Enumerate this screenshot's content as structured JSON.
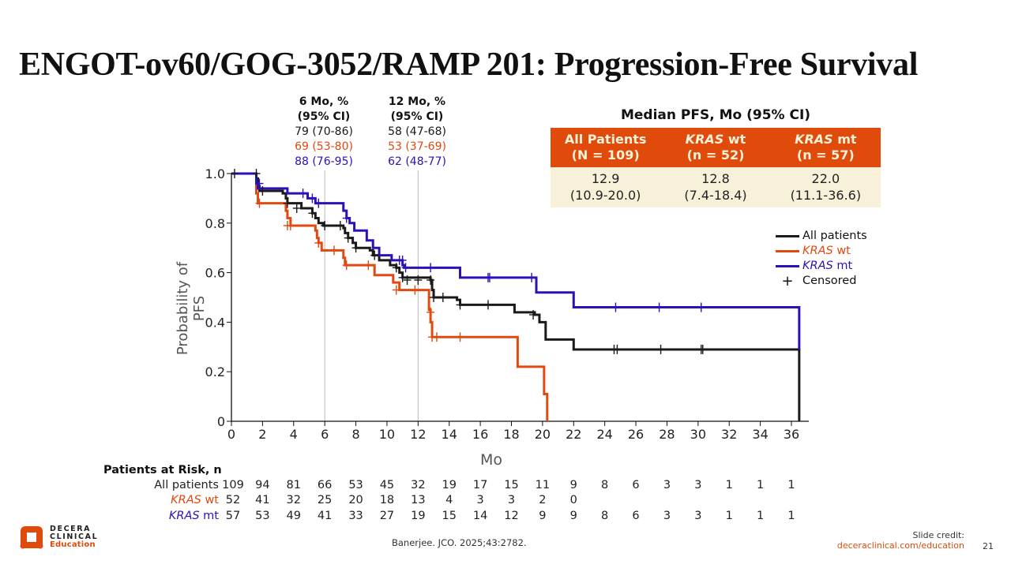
{
  "slide": {
    "title": "ENGOT-ov60/GOG-3052/RAMP 201: Progression-Free Survival",
    "citation": "Banerjee. JCO. 2025;43:2782.",
    "credit_label": "Slide credit:",
    "credit_url": "deceraclinical.com/education",
    "slide_number": "21",
    "logo": {
      "line1": "DECERA",
      "line2": "CLINICAL",
      "line3": "Education"
    }
  },
  "colors": {
    "all": "#1a1a1a",
    "wt": "#e04a10",
    "mt": "#2a12b8",
    "accent": "#e04a0a",
    "table_bg": "#f8f1d9"
  },
  "landmarks": [
    {
      "header1": "6 Mo, %",
      "header2": "(95% CI)",
      "all": "79 (70-86)",
      "wt": "69 (53-80)",
      "mt": "88 (76-95)"
    },
    {
      "header1": "12 Mo, %",
      "header2": "(95% CI)",
      "all": "58 (47-68)",
      "wt": "53 (37-69)",
      "mt": "62 (48-77)"
    }
  ],
  "median_table": {
    "title": "Median PFS, Mo (95% CI)",
    "columns": [
      {
        "label_a": "",
        "label_b": "All Patients",
        "n": "(N = 109)",
        "median": "12.9",
        "ci": "(10.9-20.0)"
      },
      {
        "label_a": "KRAS",
        "label_b": " wt",
        "n": "(n = 52)",
        "median": "12.8",
        "ci": "(7.4-18.4)"
      },
      {
        "label_a": "KRAS",
        "label_b": " mt",
        "n": "(n = 57)",
        "median": "22.0",
        "ci": "(11.1-36.6)"
      }
    ]
  },
  "legend": [
    {
      "gene": "",
      "label": "All patients",
      "key": "all"
    },
    {
      "gene": "KRAS",
      "label": " wt",
      "key": "wt"
    },
    {
      "gene": "KRAS",
      "label": " mt",
      "key": "mt"
    },
    {
      "gene": "",
      "label": "Censored",
      "key": "censor"
    }
  ],
  "risk_table": {
    "title": "Patients at Risk, n",
    "times": [
      0,
      2,
      4,
      6,
      8,
      10,
      12,
      14,
      16,
      18,
      20,
      22,
      24,
      26,
      28,
      30,
      32,
      34,
      36
    ],
    "rows": [
      {
        "gene": "",
        "label": "All patients",
        "key": "all",
        "values": [
          "109",
          "94",
          "81",
          "66",
          "53",
          "45",
          "32",
          "19",
          "17",
          "15",
          "11",
          "9",
          "8",
          "6",
          "3",
          "3",
          "1",
          "1",
          "1"
        ]
      },
      {
        "gene": "KRAS",
        "label": " wt",
        "key": "wt",
        "values": [
          "52",
          "41",
          "32",
          "25",
          "20",
          "18",
          "13",
          "4",
          "3",
          "3",
          "2",
          "0"
        ]
      },
      {
        "gene": "KRAS",
        "label": " mt",
        "key": "mt",
        "values": [
          "57",
          "53",
          "49",
          "41",
          "33",
          "27",
          "19",
          "15",
          "14",
          "12",
          "9",
          "9",
          "8",
          "6",
          "3",
          "3",
          "1",
          "1",
          "1"
        ]
      }
    ]
  },
  "chart_data": {
    "type": "line",
    "subtype": "kaplan-meier step",
    "title": "",
    "xlabel": "Mo",
    "ylabel": "Probability of PFS",
    "xlim": [
      0,
      37
    ],
    "ylim": [
      0,
      1.0
    ],
    "xticks": [
      0,
      2,
      4,
      6,
      8,
      10,
      12,
      14,
      16,
      18,
      20,
      22,
      24,
      26,
      28,
      30,
      32,
      34,
      36
    ],
    "yticks": [
      0,
      0.2,
      0.4,
      0.6,
      0.8,
      1.0
    ],
    "ytick_labels": [
      "0",
      "0.2",
      "0.4",
      "0.6",
      "0.8",
      "1.0"
    ],
    "reference_lines_x": [
      6,
      12
    ],
    "legend_position": "right",
    "series": [
      {
        "name": "All patients",
        "key": "all",
        "steps": [
          [
            0,
            1.0
          ],
          [
            1.6,
            0.98
          ],
          [
            1.7,
            0.95
          ],
          [
            1.8,
            0.93
          ],
          [
            3.3,
            0.92
          ],
          [
            3.5,
            0.9
          ],
          [
            3.6,
            0.88
          ],
          [
            4.5,
            0.86
          ],
          [
            5.2,
            0.84
          ],
          [
            5.4,
            0.82
          ],
          [
            5.6,
            0.8
          ],
          [
            5.9,
            0.79
          ],
          [
            7.2,
            0.78
          ],
          [
            7.3,
            0.76
          ],
          [
            7.5,
            0.74
          ],
          [
            7.8,
            0.72
          ],
          [
            8.0,
            0.7
          ],
          [
            8.9,
            0.69
          ],
          [
            9.1,
            0.67
          ],
          [
            9.5,
            0.65
          ],
          [
            10.2,
            0.63
          ],
          [
            10.6,
            0.62
          ],
          [
            10.8,
            0.6
          ],
          [
            11.0,
            0.58
          ],
          [
            12.8,
            0.57
          ],
          [
            12.9,
            0.53
          ],
          [
            13.0,
            0.5
          ],
          [
            14.5,
            0.49
          ],
          [
            14.7,
            0.47
          ],
          [
            18.2,
            0.44
          ],
          [
            19.5,
            0.43
          ],
          [
            19.8,
            0.4
          ],
          [
            20.2,
            0.33
          ],
          [
            22.0,
            0.29
          ],
          [
            36.5,
            0.0
          ]
        ],
        "censored": [
          [
            0.2,
            1.0
          ],
          [
            1.6,
            1.0
          ],
          [
            2.0,
            0.93
          ],
          [
            3.6,
            0.88
          ],
          [
            4.2,
            0.86
          ],
          [
            5.2,
            0.84
          ],
          [
            6.0,
            0.79
          ],
          [
            7.0,
            0.79
          ],
          [
            7.5,
            0.74
          ],
          [
            8.0,
            0.7
          ],
          [
            9.2,
            0.67
          ],
          [
            10.6,
            0.62
          ],
          [
            11.0,
            0.58
          ],
          [
            11.3,
            0.57
          ],
          [
            12.0,
            0.57
          ],
          [
            12.8,
            0.57
          ],
          [
            13.0,
            0.5
          ],
          [
            13.6,
            0.5
          ],
          [
            14.7,
            0.47
          ],
          [
            16.5,
            0.47
          ],
          [
            19.4,
            0.43
          ],
          [
            24.6,
            0.29
          ],
          [
            24.8,
            0.29
          ],
          [
            27.6,
            0.29
          ],
          [
            30.2,
            0.29
          ],
          [
            30.3,
            0.29
          ]
        ]
      },
      {
        "name": "KRAS wt",
        "key": "wt",
        "steps": [
          [
            0,
            1.0
          ],
          [
            1.6,
            0.92
          ],
          [
            1.7,
            0.88
          ],
          [
            3.5,
            0.85
          ],
          [
            3.6,
            0.82
          ],
          [
            3.8,
            0.79
          ],
          [
            5.4,
            0.77
          ],
          [
            5.5,
            0.74
          ],
          [
            5.6,
            0.72
          ],
          [
            5.8,
            0.69
          ],
          [
            7.2,
            0.66
          ],
          [
            7.3,
            0.63
          ],
          [
            9.2,
            0.59
          ],
          [
            10.4,
            0.56
          ],
          [
            10.8,
            0.53
          ],
          [
            12.7,
            0.45
          ],
          [
            12.8,
            0.4
          ],
          [
            12.9,
            0.34
          ],
          [
            18.4,
            0.22
          ],
          [
            20.1,
            0.11
          ],
          [
            20.3,
            0.0
          ]
        ],
        "censored": [
          [
            1.8,
            0.88
          ],
          [
            3.6,
            0.79
          ],
          [
            3.8,
            0.79
          ],
          [
            5.6,
            0.72
          ],
          [
            6.6,
            0.69
          ],
          [
            7.4,
            0.63
          ],
          [
            8.8,
            0.63
          ],
          [
            10.6,
            0.53
          ],
          [
            11.8,
            0.53
          ],
          [
            12.8,
            0.44
          ],
          [
            12.9,
            0.34
          ],
          [
            13.2,
            0.34
          ],
          [
            14.7,
            0.34
          ]
        ]
      },
      {
        "name": "KRAS mt",
        "key": "mt",
        "steps": [
          [
            0,
            1.0
          ],
          [
            1.6,
            0.96
          ],
          [
            1.7,
            0.94
          ],
          [
            3.6,
            0.92
          ],
          [
            4.9,
            0.9
          ],
          [
            5.4,
            0.88
          ],
          [
            7.2,
            0.85
          ],
          [
            7.4,
            0.82
          ],
          [
            7.6,
            0.8
          ],
          [
            7.9,
            0.77
          ],
          [
            8.7,
            0.73
          ],
          [
            9.1,
            0.7
          ],
          [
            9.5,
            0.67
          ],
          [
            10.3,
            0.65
          ],
          [
            11.0,
            0.63
          ],
          [
            11.1,
            0.62
          ],
          [
            14.7,
            0.58
          ],
          [
            19.6,
            0.52
          ],
          [
            22.0,
            0.46
          ],
          [
            36.5,
            0.29
          ]
        ],
        "censored": [
          [
            1.8,
            0.96
          ],
          [
            4.6,
            0.92
          ],
          [
            5.2,
            0.9
          ],
          [
            5.6,
            0.88
          ],
          [
            7.4,
            0.82
          ],
          [
            10.8,
            0.65
          ],
          [
            11.0,
            0.65
          ],
          [
            11.2,
            0.62
          ],
          [
            12.8,
            0.62
          ],
          [
            16.5,
            0.58
          ],
          [
            16.6,
            0.58
          ],
          [
            19.3,
            0.58
          ],
          [
            24.7,
            0.46
          ],
          [
            27.5,
            0.46
          ],
          [
            30.2,
            0.46
          ]
        ]
      }
    ]
  }
}
